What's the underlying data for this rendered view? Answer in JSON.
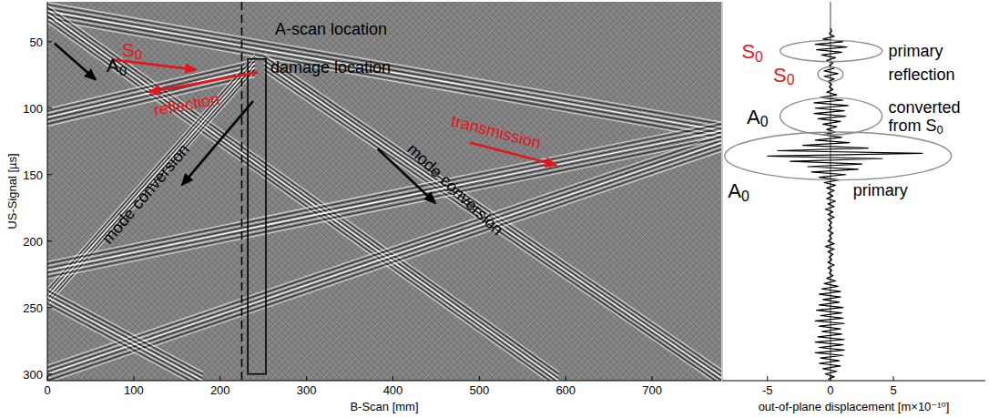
{
  "chart_data": [
    {
      "type": "line",
      "xlabel": "B-Scan [mm]",
      "ylabel": "US-Signal [µs]",
      "xlim": [
        0,
        780
      ],
      "ylim": [
        20,
        305
      ],
      "xticks": [
        0,
        100,
        200,
        300,
        400,
        500,
        600,
        700
      ],
      "yticks": [
        50,
        100,
        150,
        200,
        250,
        300
      ],
      "grid": false,
      "series": [
        {
          "x": [
            0,
            780
          ],
          "values": [
            27,
            117
          ]
        },
        {
          "x": [
            0,
            592
          ],
          "values": [
            29,
            305
          ]
        },
        {
          "x": [
            240,
            0
          ],
          "values": [
            70,
            107
          ]
        },
        {
          "x": [
            240,
            0
          ],
          "values": [
            66,
            242
          ]
        },
        {
          "x": [
            251,
            780
          ],
          "values": [
            66,
            303
          ]
        },
        {
          "x": [
            0,
            780
          ],
          "values": [
            300,
            126
          ]
        },
        {
          "x": [
            780,
            0
          ],
          "values": [
            117,
            222
          ]
        },
        {
          "x": [
            0,
            180
          ],
          "values": [
            242,
            305
          ]
        }
      ],
      "ascan": {
        "x": 225,
        "text": "A-scan location",
        "text_at": [
          263.4,
          40.5
        ]
      },
      "damage": {
        "x": [
          232,
          253
        ],
        "y": [
          63,
          300
        ],
        "text": "damage location",
        "text_at": [
          258.2,
          69
        ]
      },
      "annotations": [
        {
          "text": "S0",
          "color": "#e8141b",
          "x": 98.1,
          "y": 55.4,
          "arrow": [
            [
              76.9,
              63.6
            ],
            [
              171.8,
              71.1
            ]
          ]
        },
        {
          "text": "A0",
          "color": "#000000",
          "x": 80.1,
          "y": 67.6,
          "arrow": [
            [
              8.4,
              51.4
            ],
            [
              55.8,
              78.5
            ]
          ]
        },
        {
          "text": "reflection",
          "color": "#e8141b",
          "x": 161,
          "y": 97.4,
          "arrow": [
            [
              243.4,
              73.0
            ],
            [
              118.0,
              87.9
            ]
          ]
        },
        {
          "text": "transmission",
          "color": "#e8141b",
          "x": 519.4,
          "y": 117.8,
          "arrow": [
            [
              488.9,
              125.9
            ],
            [
              588.9,
              142.8
            ]
          ]
        },
        {
          "text": "mode conversion",
          "color": "#000000",
          "x": 113.8,
          "y": 164.5,
          "arrow": [
            [
              238.1,
              94.7
            ],
            [
              156.0,
              157.7
            ]
          ]
        },
        {
          "text": "mode conversion",
          "color": "#000000",
          "x": 472.1,
          "y": 161.1,
          "arrow": [
            [
              382.5,
              130.6
            ],
            [
              448.9,
              171.3
            ]
          ]
        }
      ]
    },
    {
      "type": "line",
      "orientation": "horizontal",
      "xlabel": "out-of-plane displacement [m×10⁻¹⁰]",
      "xlim": [
        -8.6,
        12.3
      ],
      "xticks": [
        -5,
        0,
        5
      ],
      "ylim": [
        20,
        305
      ],
      "tick_labels": "x",
      "grid": false,
      "series": [
        {
          "color": "#000000",
          "time": [
            40,
            42,
            44,
            46,
            48,
            50,
            52,
            54,
            56,
            58,
            60,
            62,
            64,
            66,
            68,
            70,
            72,
            74,
            76,
            78,
            80,
            82,
            84,
            86,
            88,
            90,
            92,
            94,
            96,
            98,
            100,
            102,
            104,
            106,
            108,
            110,
            112,
            114,
            116,
            118,
            120,
            122,
            124,
            126,
            128,
            130,
            132,
            134,
            136,
            138,
            140,
            142,
            144,
            146,
            148,
            150,
            152,
            154,
            156,
            158,
            160,
            162,
            164,
            166,
            168,
            170,
            172,
            174,
            176,
            178,
            180,
            182,
            184,
            186,
            188,
            190,
            192,
            194,
            196,
            198,
            200,
            202,
            204,
            206,
            208,
            210,
            212,
            214,
            216,
            218,
            220,
            222,
            224,
            226,
            228,
            230,
            232,
            234,
            236,
            238,
            240,
            242,
            244,
            246,
            248,
            250,
            252,
            254,
            256,
            258,
            260,
            262,
            264,
            266,
            268,
            270,
            272,
            274,
            276,
            278,
            280,
            282,
            284,
            286,
            288,
            290,
            292,
            294,
            296,
            298,
            300,
            302,
            304
          ],
          "values": [
            0,
            0.1,
            -0.1,
            0.3,
            -0.6,
            1.0,
            -1.2,
            1.3,
            -1.1,
            0.9,
            -0.7,
            0.4,
            -0.3,
            0.2,
            -0.1,
            0.3,
            -0.5,
            0.6,
            -0.5,
            0.3,
            -0.2,
            0.1,
            -0.1,
            0.2,
            -0.3,
            0.5,
            -0.8,
            1.0,
            -1.3,
            1.4,
            -1.2,
            1.1,
            -1.3,
            1.2,
            -1.0,
            0.8,
            -0.6,
            0.5,
            -0.3,
            0.4,
            -0.6,
            0.9,
            -1.2,
            1.5,
            -2.2,
            3.0,
            -4.2,
            7.3,
            -5.0,
            4.1,
            -3.2,
            2.5,
            -1.8,
            2.2,
            -1.5,
            1.2,
            -0.9,
            0.7,
            -0.5,
            0.4,
            -0.3,
            0.3,
            -0.2,
            0.2,
            -0.3,
            0.4,
            -0.2,
            0.3,
            -0.4,
            0.2,
            -0.2,
            0.3,
            -0.2,
            0.1,
            -0.1,
            0.1,
            -0.2,
            0.2,
            -0.1,
            0.1,
            -0.2,
            0.3,
            -0.4,
            0.3,
            -0.2,
            0.2,
            -0.1,
            0.1,
            -0.2,
            0.3,
            -0.2,
            0.1,
            -0.1,
            0.2,
            -0.3,
            0.4,
            -0.5,
            0.6,
            -0.7,
            0.8,
            -0.9,
            0.8,
            -0.6,
            0.7,
            -0.9,
            1.0,
            -1.1,
            0.9,
            -0.8,
            1.0,
            -1.2,
            1.1,
            -0.9,
            0.8,
            -0.7,
            0.9,
            -1.0,
            1.1,
            -1.2,
            1.0,
            -0.9,
            1.1,
            -1.2,
            1.0,
            -0.8,
            0.7,
            -0.9,
            0.8,
            -0.6,
            0.5,
            -0.4,
            0.3,
            -0.2
          ]
        }
      ],
      "annotations": [
        {
          "label": "S0",
          "note": "primary",
          "color": "#e8141b",
          "x": [
            -4,
            4.1
          ],
          "y": [
            49,
            65
          ],
          "label_at": [
            -6.2,
            57
          ],
          "note_at": [
            4.6,
            57
          ]
        },
        {
          "label": "S0",
          "note": "reflection",
          "color": "#e8141b",
          "x": [
            -1,
            1
          ],
          "y": [
            69,
            80
          ],
          "label_at": [
            -3.7,
            74.5
          ],
          "note_at": [
            4.6,
            74.5
          ]
        },
        {
          "label": "A0",
          "note": "converted from S0",
          "color": "#000000",
          "x": [
            -4,
            4.1
          ],
          "y": [
            92,
            120
          ],
          "label_at": [
            -5.8,
            106
          ],
          "note_at": [
            4.6,
            106
          ]
        },
        {
          "label": "A0",
          "note": "primary",
          "color": "#000000",
          "x": [
            -8.4,
            9.6
          ],
          "y": [
            118,
            154
          ],
          "label_at": [
            -7.3,
            162
          ],
          "note_at": [
            1.8,
            162
          ]
        }
      ]
    }
  ]
}
